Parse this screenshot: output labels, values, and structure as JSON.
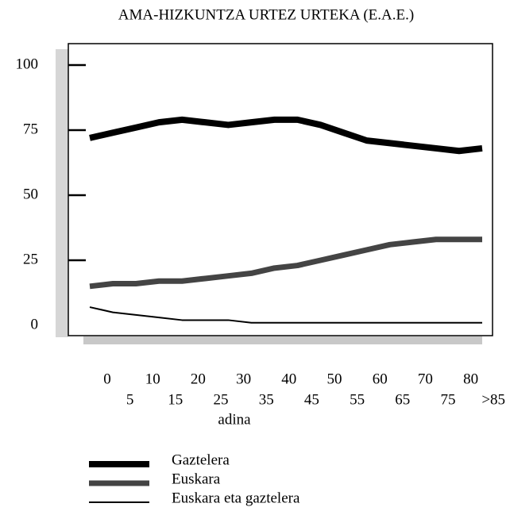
{
  "chart_data": {
    "type": "line",
    "title": "AMA-HIZKUNTZA URTEZ URTEKA (E.A.E.)",
    "x_label": "adina",
    "categories": [
      "0",
      "5",
      "10",
      "15",
      "20",
      "25",
      "30",
      "35",
      "40",
      "45",
      "50",
      "55",
      "60",
      "65",
      "70",
      "75",
      "80",
      ">85"
    ],
    "series": [
      {
        "name": "Gaztelera",
        "color": "#000000",
        "values": [
          72,
          74,
          76,
          78,
          79,
          78,
          77,
          78,
          79,
          79,
          77,
          74,
          71,
          70,
          69,
          68,
          67,
          68
        ]
      },
      {
        "name": "Euskara",
        "color": "#444444",
        "values": [
          15,
          16,
          16,
          17,
          17,
          18,
          19,
          20,
          22,
          23,
          25,
          27,
          29,
          31,
          32,
          33,
          33,
          33
        ]
      },
      {
        "name": "Euskara eta gaztelera",
        "color": "#000000",
        "values": [
          7,
          5,
          4,
          3,
          2,
          2,
          2,
          1,
          1,
          1,
          1,
          1,
          1,
          1,
          1,
          1,
          1,
          1
        ]
      }
    ],
    "ylim": [
      0,
      100
    ],
    "yticks": [
      0,
      25,
      50,
      75,
      100
    ],
    "legend": "bottom-left"
  }
}
